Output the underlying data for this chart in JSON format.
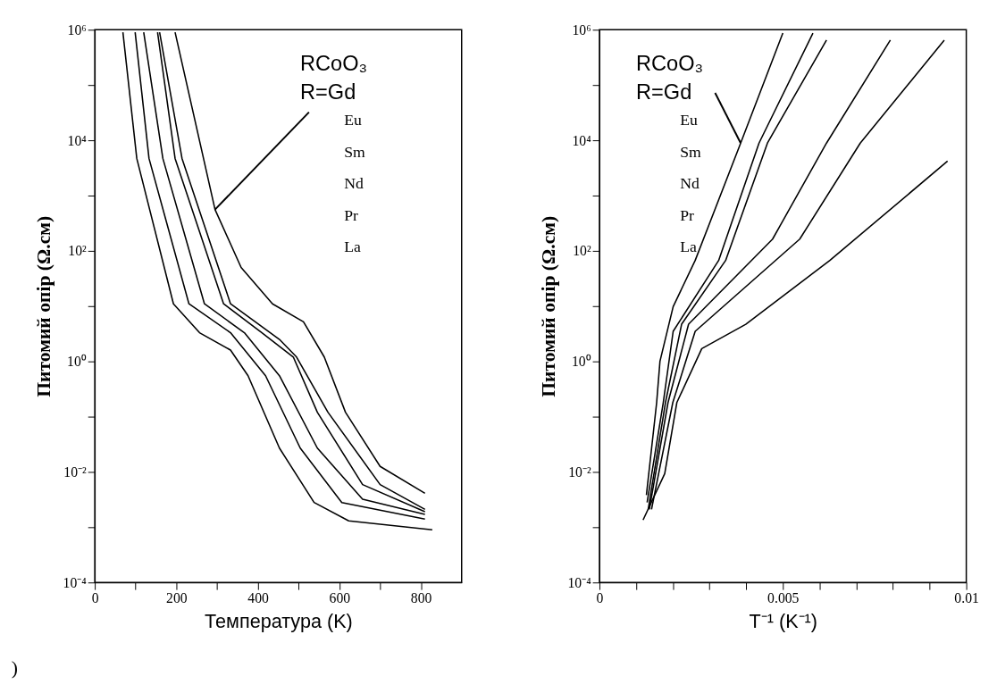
{
  "chart_data": [
    {
      "type": "line",
      "xlabel": "Температура (K)",
      "ylabel": "Питомий опір (Ω.см)",
      "log": true,
      "grid": false,
      "legend": false,
      "xlim": [
        0,
        900
      ],
      "ylim": [
        0.0001,
        1000000
      ],
      "xticks": [
        0,
        {
          "value": 100,
          "label": null
        },
        200,
        {
          "value": 300,
          "label": null
        },
        400,
        {
          "value": 500,
          "label": null
        },
        600,
        {
          "value": 700,
          "label": null
        },
        800
      ],
      "yticks": [
        {
          "value": 0.0001,
          "label": "10⁻⁴"
        },
        {
          "value": 0.001,
          "label": null
        },
        {
          "value": 0.01,
          "label": "10⁻²"
        },
        {
          "value": 0.1,
          "label": null
        },
        {
          "value": 1,
          "label": "10⁰"
        },
        {
          "value": 10,
          "label": null
        },
        {
          "value": 100,
          "label": "10²"
        },
        {
          "value": 1000,
          "label": null
        },
        {
          "value": 10000,
          "label": "10⁴"
        },
        {
          "value": 100000,
          "label": null
        },
        {
          "value": 1000000,
          "label": "10⁶"
        }
      ],
      "annotations": [
        "RCoO₃",
        {
          "text": "R=Gd",
          "x": 295,
          "y": 560
        },
        "Eu",
        "Sm",
        "Nd",
        "Pr",
        "La",
        ")"
      ],
      "series": [
        {
          "color": "#000000",
          "x": [
            197,
            295,
            359,
            436,
            512,
            563,
            615,
            700,
            810
          ],
          "values": [
            900000,
            560,
            50,
            11,
            5.2,
            1.2,
            0.12,
            0.0126,
            0.0041
          ]
        },
        {
          "color": "#000000",
          "x": [
            159,
            214,
            333,
            453,
            495,
            572,
            700,
            810
          ],
          "values": [
            900000,
            4700,
            11,
            2.5,
            1.2,
            0.12,
            0.0059,
            0.0021
          ]
        },
        {
          "color": "#000000",
          "x": [
            154,
            197,
            316,
            410,
            487,
            546,
            657,
            810
          ],
          "values": [
            900000,
            4700,
            11,
            3.3,
            1.2,
            0.12,
            0.0059,
            0.0019
          ]
        },
        {
          "color": "#000000",
          "x": [
            120,
            167,
            269,
            367,
            453,
            546,
            657,
            810
          ],
          "values": [
            900000,
            4700,
            11,
            3.3,
            0.55,
            0.027,
            0.0032,
            0.0017
          ]
        },
        {
          "color": "#000000",
          "x": [
            99,
            133,
            231,
            333,
            419,
            504,
            606,
            810
          ],
          "values": [
            900000,
            4700,
            11,
            3.3,
            0.55,
            0.027,
            0.0028,
            0.0014
          ]
        },
        {
          "color": "#000000",
          "x": [
            69,
            103,
            193,
            257,
            333,
            376,
            453,
            538,
            623,
            828
          ],
          "values": [
            900000,
            4700,
            11,
            3.3,
            1.6,
            0.55,
            0.027,
            0.0028,
            0.0013,
            0.0009
          ]
        }
      ]
    },
    {
      "type": "line",
      "xlabel": "T⁻¹ (K⁻¹)",
      "ylabel": "Питомий опір (Ω.см)",
      "log": true,
      "grid": false,
      "legend": false,
      "xlim": [
        0,
        0.01
      ],
      "ylim": [
        0.0001,
        1000000
      ],
      "xticks": [
        0,
        {
          "value": 0.001,
          "label": null
        },
        {
          "value": 0.002,
          "label": null
        },
        {
          "value": 0.003,
          "label": null
        },
        {
          "value": 0.004,
          "label": null
        },
        0.005,
        {
          "value": 0.006,
          "label": null
        },
        {
          "value": 0.007,
          "label": null
        },
        {
          "value": 0.008,
          "label": null
        },
        {
          "value": 0.009,
          "label": null
        },
        0.01
      ],
      "yticks": [
        {
          "value": 0.0001,
          "label": "10⁻⁴"
        },
        {
          "value": 0.001,
          "label": null
        },
        {
          "value": 0.01,
          "label": "10⁻²"
        },
        {
          "value": 0.1,
          "label": null
        },
        {
          "value": 1,
          "label": "10⁰"
        },
        {
          "value": 10,
          "label": null
        },
        {
          "value": 100,
          "label": "10²"
        },
        {
          "value": 1000,
          "label": null
        },
        {
          "value": 10000,
          "label": "10⁴"
        },
        {
          "value": 100000,
          "label": null
        },
        {
          "value": 1000000,
          "label": "10⁶"
        }
      ],
      "annotations": [
        "RCoO₃",
        {
          "text": "R=Gd",
          "x": 0.00385,
          "y": 8900
        },
        "Eu",
        "Sm",
        "Nd",
        "Pr",
        "La"
      ],
      "series": [
        {
          "color": "#000000",
          "x": [
            0.00128,
            0.00156,
            0.00165,
            0.00201,
            0.00261,
            0.00385,
            0.005
          ],
          "values": [
            0.0038,
            0.18,
            1.0,
            9.8,
            67,
            8900,
            870000
          ]
        },
        {
          "color": "#000000",
          "x": [
            0.0013,
            0.00174,
            0.00201,
            0.00325,
            0.00435,
            0.00582
          ],
          "values": [
            0.0028,
            0.18,
            3.5,
            67,
            8900,
            870000
          ]
        },
        {
          "color": "#000000",
          "x": [
            0.00133,
            0.0018,
            0.00224,
            0.00344,
            0.00458,
            0.00619
          ],
          "values": [
            0.0021,
            0.18,
            4.7,
            67,
            8900,
            650000
          ]
        },
        {
          "color": "#000000",
          "x": [
            0.00136,
            0.00187,
            0.00243,
            0.00472,
            0.00619,
            0.00793
          ],
          "values": [
            0.0021,
            0.18,
            4.7,
            163,
            8900,
            650000
          ]
        },
        {
          "color": "#000000",
          "x": [
            0.00142,
            0.002,
            0.00261,
            0.00546,
            0.00711,
            0.0094
          ],
          "values": [
            0.0021,
            0.18,
            3.5,
            163,
            8900,
            650000
          ]
        },
        {
          "color": "#000000",
          "x": [
            0.00119,
            0.00178,
            0.00211,
            0.00279,
            0.00399,
            0.00628,
            0.00949
          ],
          "values": [
            0.00135,
            0.0093,
            0.18,
            1.7,
            4.7,
            67,
            4200
          ]
        }
      ]
    }
  ]
}
